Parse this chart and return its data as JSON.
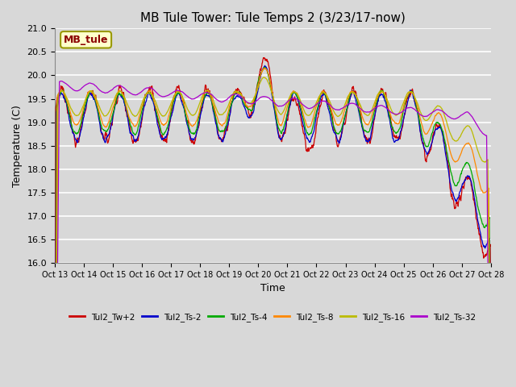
{
  "title": "MB Tule Tower: Tule Temps 2 (3/23/17-now)",
  "xlabel": "Time",
  "ylabel": "Temperature (C)",
  "ylim": [
    16.0,
    21.0
  ],
  "yticks": [
    16.0,
    16.5,
    17.0,
    17.5,
    18.0,
    18.5,
    19.0,
    19.5,
    20.0,
    20.5,
    21.0
  ],
  "xtick_labels": [
    "Oct 13",
    "Oct 14",
    "Oct 15",
    "Oct 16",
    "Oct 17",
    "Oct 18",
    "Oct 19",
    "Oct 20",
    "Oct 21",
    "Oct 22",
    "Oct 23",
    "Oct 24",
    "Oct 25",
    "Oct 26",
    "Oct 27",
    "Oct 28"
  ],
  "series_colors": {
    "Tul2_Tw+2": "#cc0000",
    "Tul2_Ts-2": "#0000cc",
    "Tul2_Ts-4": "#00aa00",
    "Tul2_Ts-8": "#ff8800",
    "Tul2_Ts-16": "#bbbb00",
    "Tul2_Ts-32": "#aa00cc"
  },
  "series_names": [
    "Tul2_Tw+2",
    "Tul2_Ts-2",
    "Tul2_Ts-4",
    "Tul2_Ts-8",
    "Tul2_Ts-16",
    "Tul2_Ts-32"
  ],
  "annotation_text": "MB_tule",
  "fig_facecolor": "#d8d8d8",
  "plot_facecolor": "#d8d8d8",
  "grid_color": "#ffffff",
  "title_fontsize": 11,
  "axis_fontsize": 9,
  "tick_fontsize": 8,
  "figsize": [
    6.4,
    4.8
  ],
  "dpi": 100
}
